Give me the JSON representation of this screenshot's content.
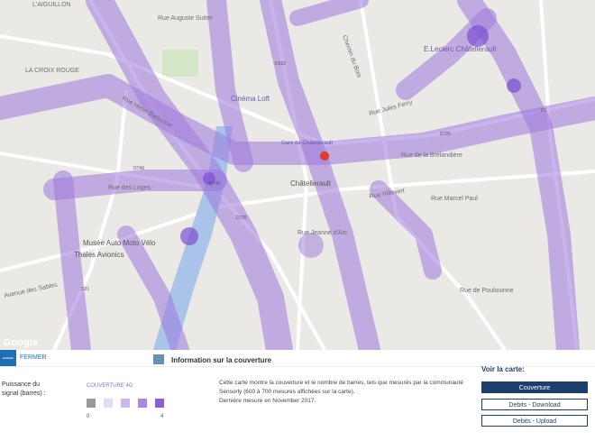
{
  "map": {
    "labels": [
      "L'AIGUILLON",
      "Rue Auguste Sutter",
      "Chemin du Bois",
      "E.Leclerc Châtellerault",
      "LA CROIX ROUGE",
      "Cinéma Loft",
      "Rue Henri Barbusse",
      "Rue Jules Ferry",
      "Gare de Châtellerault",
      "Rue de la Brelandière",
      "Châtellerault",
      "Rue Villevert",
      "Rue Marcel Paul",
      "Rue des Loges",
      "Musée Auto Moto Vélo",
      "Thales Avionics",
      "Rue Jeanne d'Arc",
      "Rue de Poulouinne",
      "Avenue des Sables",
      "Google"
    ],
    "roads": [
      "D910",
      "D725",
      "D749",
      "D1",
      "D21",
      "D725",
      "D749"
    ]
  },
  "panel": {
    "close": "FERMER",
    "title": "Information sur la couverture",
    "legend_label": "Puissance du signal (barres) :",
    "legend_title": "COUVERTURE 4G",
    "legend_min": "0",
    "legend_max": "4",
    "description": "Cette carte montre la couverture et le nombre de barres, tels que mesurés par la communauté Sensorly (600 à 700 mesures affichées sur la carte).",
    "last_measure": "Dernière mesure en November 2017.",
    "see_map": "Voir la carte:",
    "buttons": [
      "Couverture",
      "Debits - Download",
      "Debits - Upload"
    ]
  }
}
